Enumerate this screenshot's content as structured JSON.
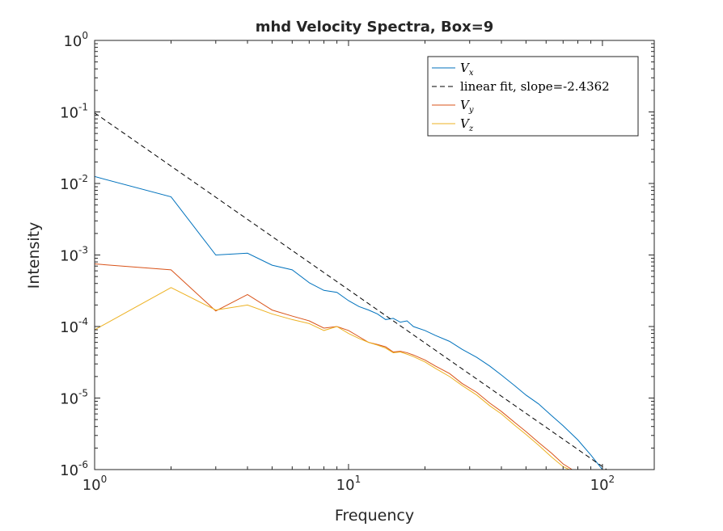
{
  "chart_data": {
    "type": "line",
    "title": "mhd Velocity Spectra, Box=9",
    "xlabel": "Frequency",
    "ylabel": "Intensity",
    "xscale": "log",
    "yscale": "log",
    "xlim": [
      1,
      160
    ],
    "ylim": [
      1e-06,
      1
    ],
    "x_ticks": [
      {
        "value": 1,
        "base": "10",
        "exp": "0"
      },
      {
        "value": 10,
        "base": "10",
        "exp": "1"
      },
      {
        "value": 100,
        "base": "10",
        "exp": "2"
      }
    ],
    "y_ticks": [
      {
        "value": 1,
        "base": "10",
        "exp": "0"
      },
      {
        "value": 0.1,
        "base": "10",
        "exp": "-1"
      },
      {
        "value": 0.01,
        "base": "10",
        "exp": "-2"
      },
      {
        "value": 0.001,
        "base": "10",
        "exp": "-3"
      },
      {
        "value": 0.0001,
        "base": "10",
        "exp": "-4"
      },
      {
        "value": 1e-05,
        "base": "10",
        "exp": "-5"
      },
      {
        "value": 1e-06,
        "base": "10",
        "exp": "-6"
      }
    ],
    "grid": false,
    "legend_position": "top-right",
    "series": [
      {
        "name": "Vx",
        "legend_main": "V",
        "legend_sub": "x",
        "color": "#0072BD",
        "dash": "",
        "points": [
          [
            1,
            0.0125
          ],
          [
            2,
            0.0065
          ],
          [
            3,
            0.001
          ],
          [
            4,
            0.00106
          ],
          [
            5,
            0.00072
          ],
          [
            6,
            0.00062
          ],
          [
            7,
            0.00041
          ],
          [
            8,
            0.00032
          ],
          [
            9,
            0.0003
          ],
          [
            10,
            0.00023
          ],
          [
            11,
            0.00019
          ],
          [
            12,
            0.00017
          ],
          [
            13,
            0.00015
          ],
          [
            14,
            0.000125
          ],
          [
            15,
            0.00013
          ],
          [
            16,
            0.000115
          ],
          [
            17,
            0.00012
          ],
          [
            18,
            0.0001
          ],
          [
            20,
            8.8e-05
          ],
          [
            22,
            7.5e-05
          ],
          [
            25,
            6.2e-05
          ],
          [
            28,
            4.8e-05
          ],
          [
            32,
            3.7e-05
          ],
          [
            36,
            2.8e-05
          ],
          [
            40,
            2.1e-05
          ],
          [
            45,
            1.5e-05
          ],
          [
            50,
            1.1e-05
          ],
          [
            56,
            8.3e-06
          ],
          [
            63,
            5.7e-06
          ],
          [
            70,
            4.1e-06
          ],
          [
            80,
            2.6e-06
          ],
          [
            90,
            1.6e-06
          ],
          [
            100,
            1e-06
          ]
        ]
      },
      {
        "name": "linear fit, slope=-2.4362",
        "legend_main": "linear fit, slope=-2.4362",
        "legend_sub": "",
        "color": "#000000",
        "dash": "6,4",
        "points": [
          [
            1,
            0.097
          ],
          [
            104,
            1e-06
          ]
        ]
      },
      {
        "name": "Vy",
        "legend_main": "V",
        "legend_sub": "y",
        "color": "#D95319",
        "dash": "",
        "points": [
          [
            1,
            0.00075
          ],
          [
            2,
            0.00062
          ],
          [
            3,
            0.000165
          ],
          [
            4,
            0.00028
          ],
          [
            5,
            0.00017
          ],
          [
            6,
            0.00014
          ],
          [
            7,
            0.00012
          ],
          [
            8,
            9.5e-05
          ],
          [
            9,
            0.0001
          ],
          [
            10,
            8.8e-05
          ],
          [
            11,
            7.2e-05
          ],
          [
            12,
            6e-05
          ],
          [
            13,
            5.6e-05
          ],
          [
            14,
            5.2e-05
          ],
          [
            15,
            4.4e-05
          ],
          [
            16,
            4.5e-05
          ],
          [
            17,
            4.3e-05
          ],
          [
            18,
            4e-05
          ],
          [
            20,
            3.4e-05
          ],
          [
            22,
            2.8e-05
          ],
          [
            25,
            2.2e-05
          ],
          [
            28,
            1.6e-05
          ],
          [
            32,
            1.2e-05
          ],
          [
            36,
            8.5e-06
          ],
          [
            40,
            6.5e-06
          ],
          [
            45,
            4.6e-06
          ],
          [
            50,
            3.4e-06
          ],
          [
            56,
            2.4e-06
          ],
          [
            63,
            1.7e-06
          ],
          [
            70,
            1.2e-06
          ],
          [
            76,
            1e-06
          ]
        ]
      },
      {
        "name": "Vz",
        "legend_main": "V",
        "legend_sub": "z",
        "color": "#EDB120",
        "dash": "",
        "points": [
          [
            1,
            9e-05
          ],
          [
            2,
            0.00035
          ],
          [
            3,
            0.00017
          ],
          [
            4,
            0.0002
          ],
          [
            5,
            0.00015
          ],
          [
            6,
            0.000125
          ],
          [
            7,
            0.00011
          ],
          [
            8,
            8.8e-05
          ],
          [
            9,
            0.0001
          ],
          [
            10,
            8e-05
          ],
          [
            11,
            6.8e-05
          ],
          [
            12,
            6e-05
          ],
          [
            13,
            5.5e-05
          ],
          [
            14,
            5e-05
          ],
          [
            15,
            4.3e-05
          ],
          [
            16,
            4.4e-05
          ],
          [
            17,
            4.1e-05
          ],
          [
            18,
            3.8e-05
          ],
          [
            20,
            3.2e-05
          ],
          [
            22,
            2.6e-05
          ],
          [
            25,
            2e-05
          ],
          [
            28,
            1.5e-05
          ],
          [
            32,
            1.1e-05
          ],
          [
            36,
            7.8e-06
          ],
          [
            40,
            6e-06
          ],
          [
            45,
            4.2e-06
          ],
          [
            50,
            3.1e-06
          ],
          [
            56,
            2.2e-06
          ],
          [
            63,
            1.5e-06
          ],
          [
            70,
            1.1e-06
          ],
          [
            74,
            1e-06
          ]
        ]
      }
    ]
  }
}
